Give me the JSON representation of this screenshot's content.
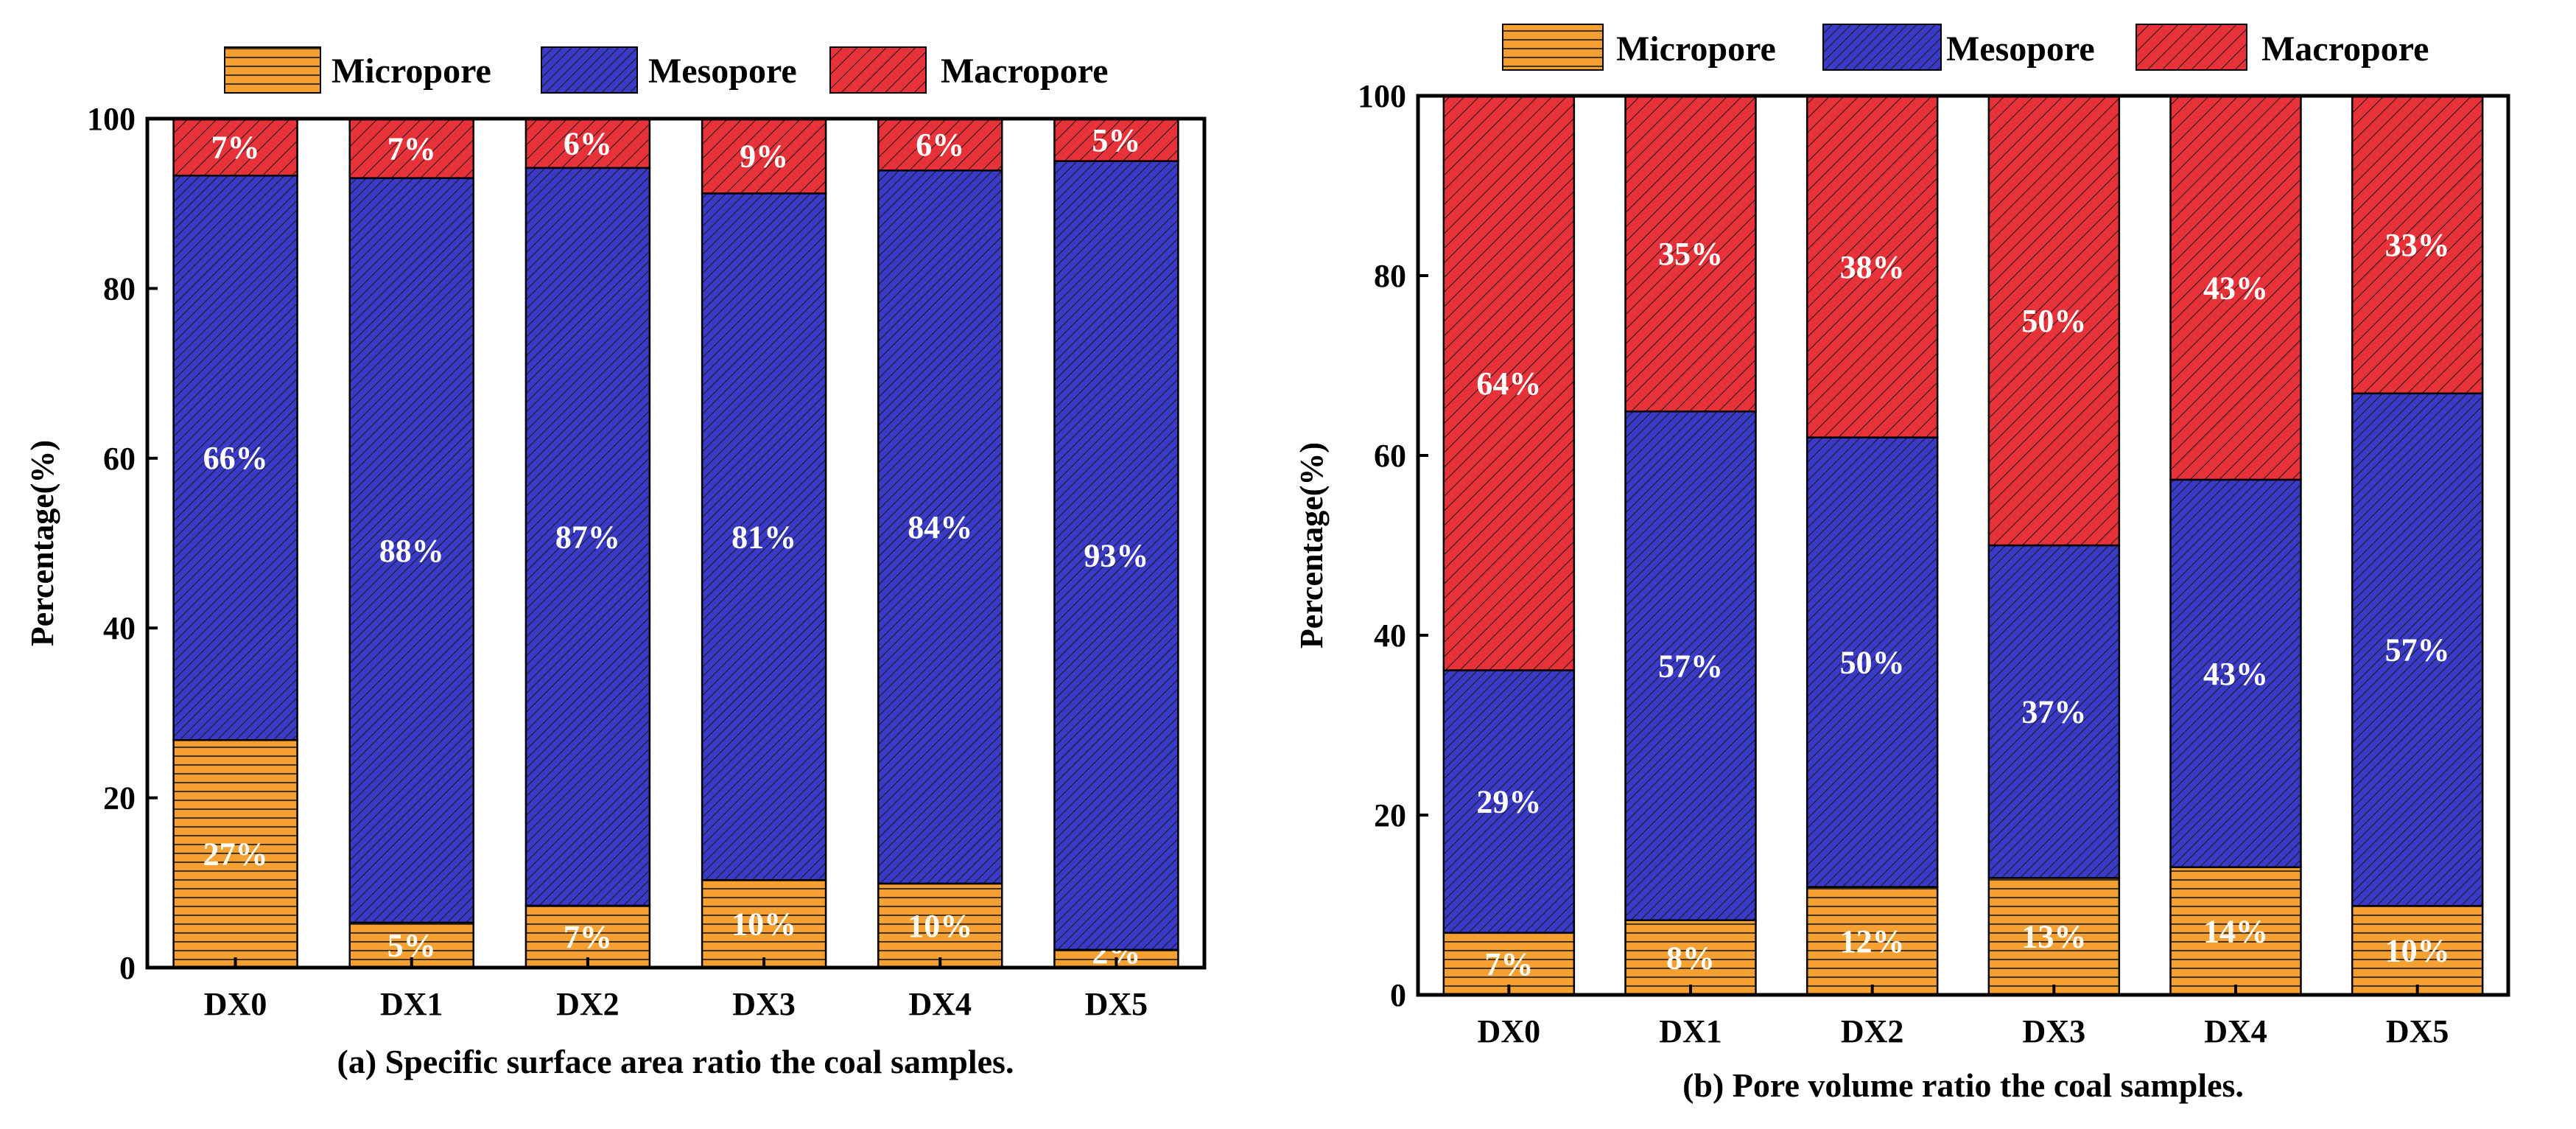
{
  "colors": {
    "micropore": "#f5a030",
    "mesopore": "#3a3ac8",
    "macropore": "#e8323a",
    "hatch": "#1a1a1a"
  },
  "chart_data": [
    {
      "type": "bar",
      "stacked": true,
      "title": "",
      "caption": "(a) Specific surface area ratio the coal samples.",
      "xlabel": "",
      "ylabel": "Percentage(%)",
      "ylim": [
        0,
        100
      ],
      "yticks": [
        "0",
        "20",
        "40",
        "60",
        "80",
        "100"
      ],
      "categories": [
        "DX0",
        "DX1",
        "DX2",
        "DX3",
        "DX4",
        "DX5"
      ],
      "series": [
        {
          "name": "Micropore",
          "values": [
            26.8,
            5.3,
            7.3,
            10.3,
            9.9,
            2.1
          ],
          "labels": [
            "27%",
            "5%",
            "7%",
            "10%",
            "10%",
            "2%"
          ]
        },
        {
          "name": "Mesopore",
          "values": [
            66.5,
            87.7,
            86.9,
            80.9,
            84.0,
            92.9
          ],
          "labels": [
            "66%",
            "88%",
            "87%",
            "81%",
            "84%",
            "93%"
          ]
        },
        {
          "name": "Macropore",
          "values": [
            6.7,
            7.0,
            5.8,
            8.8,
            6.1,
            5.0
          ],
          "labels": [
            "7%",
            "7%",
            "6%",
            "9%",
            "6%",
            "5%"
          ]
        }
      ],
      "legend": "top-center"
    },
    {
      "type": "bar",
      "stacked": true,
      "title": "",
      "caption": "(b) Pore volume ratio the coal samples.",
      "xlabel": "",
      "ylabel": "Percentage(%)",
      "ylim": [
        0,
        100
      ],
      "yticks": [
        "0",
        "20",
        "40",
        "60",
        "80",
        "100"
      ],
      "categories": [
        "DX0",
        "DX1",
        "DX2",
        "DX3",
        "DX4",
        "DX5"
      ],
      "series": [
        {
          "name": "Micropore",
          "values": [
            6.9,
            8.3,
            12.0,
            13.0,
            14.2,
            9.9
          ],
          "labels": [
            "7%",
            "8%",
            "12%",
            "13%",
            "14%",
            "10%"
          ]
        },
        {
          "name": "Mesopore",
          "values": [
            29.2,
            56.6,
            50.0,
            37.0,
            43.1,
            57.0
          ],
          "labels": [
            "29%",
            "57%",
            "50%",
            "37%",
            "43%",
            "57%"
          ]
        },
        {
          "name": "Macropore",
          "values": [
            63.9,
            35.1,
            38.0,
            50.0,
            42.7,
            33.1
          ],
          "labels": [
            "64%",
            "35%",
            "38%",
            "50%",
            "43%",
            "33%"
          ]
        }
      ],
      "legend": "top-center"
    }
  ]
}
